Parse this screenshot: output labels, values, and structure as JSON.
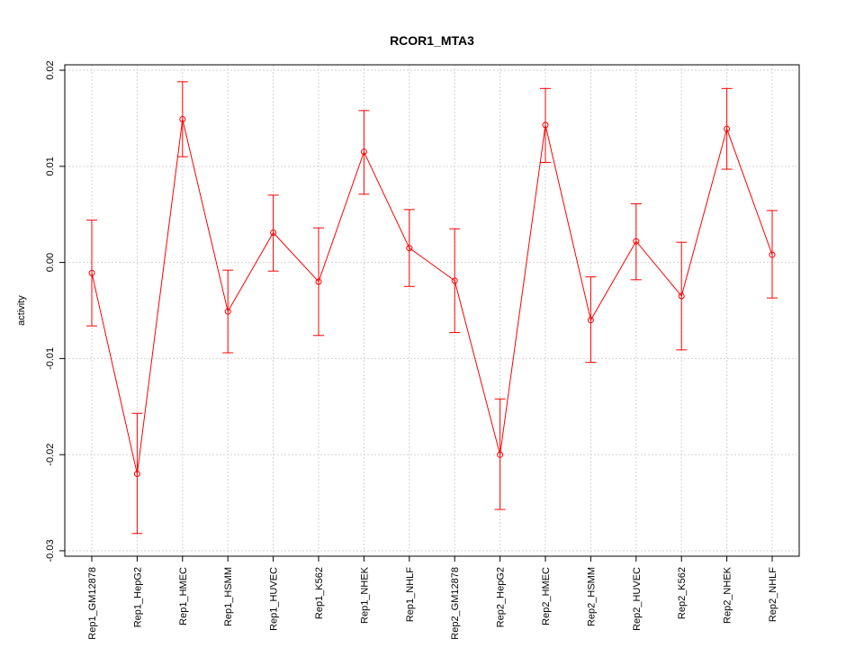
{
  "chart_data": {
    "type": "line",
    "title": "RCOR1_MTA3",
    "xlabel": "",
    "ylabel": "activity",
    "ylim": [
      -0.03,
      0.02
    ],
    "yticks": [
      -0.03,
      -0.02,
      -0.01,
      0.0,
      0.01,
      0.02
    ],
    "ytick_labels": [
      "-0.03",
      "-0.02",
      "-0.01",
      "0.00",
      "0.01",
      "0.02"
    ],
    "grid": true,
    "categories": [
      "Rep1_GM12878",
      "Rep1_HepG2",
      "Rep1_HMEC",
      "Rep1_HSMM",
      "Rep1_HUVEC",
      "Rep1_K562",
      "Rep1_NHEK",
      "Rep1_NHLF",
      "Rep2_GM12878",
      "Rep2_HepG2",
      "Rep2_HMEC",
      "Rep2_HSMM",
      "Rep2_HUVEC",
      "Rep2_K562",
      "Rep2_NHEK",
      "Rep2_NHLF"
    ],
    "series": [
      {
        "color": "#ff0000",
        "values": [
          -0.0011,
          -0.022,
          0.0149,
          -0.0051,
          0.0031,
          -0.002,
          0.0115,
          0.0015,
          -0.0019,
          -0.02,
          0.0143,
          -0.006,
          0.0022,
          -0.0035,
          0.0139,
          0.0008
        ],
        "upper": [
          0.0044,
          -0.0157,
          0.0188,
          -0.0008,
          0.007,
          0.0036,
          0.0158,
          0.0055,
          0.0035,
          -0.0142,
          0.0181,
          -0.0015,
          0.0061,
          0.0021,
          0.0181,
          0.0054
        ],
        "lower": [
          -0.0066,
          -0.0282,
          0.011,
          -0.0094,
          -0.0009,
          -0.0076,
          0.0071,
          -0.0025,
          -0.0073,
          -0.0257,
          0.0104,
          -0.0104,
          -0.0018,
          -0.0091,
          0.0097,
          -0.0037
        ]
      }
    ]
  }
}
